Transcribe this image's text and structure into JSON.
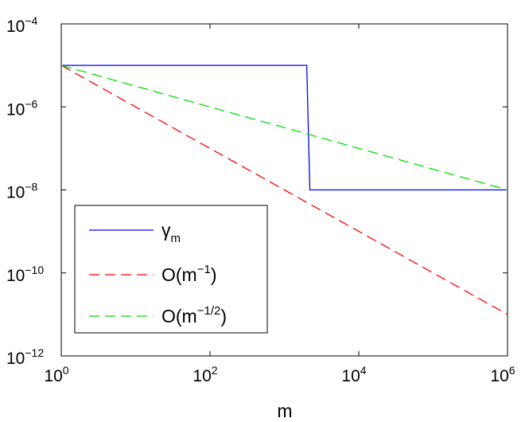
{
  "chart_data": {
    "type": "line",
    "xlabel": "m",
    "ylabel": "",
    "xscale": "log",
    "yscale": "log",
    "xlim": [
      1,
      1000000
    ],
    "ylim": [
      1e-12,
      0.0001
    ],
    "grid": false,
    "legend_position": "bottom-left",
    "x_ticks": [
      {
        "base": "10",
        "exp": "0",
        "value": 1
      },
      {
        "base": "10",
        "exp": "2",
        "value": 100
      },
      {
        "base": "10",
        "exp": "4",
        "value": 10000
      },
      {
        "base": "10",
        "exp": "6",
        "value": 1000000
      }
    ],
    "y_ticks": [
      {
        "base": "10",
        "exp": "−4",
        "value": 0.0001
      },
      {
        "base": "10",
        "exp": "−6",
        "value": 1e-06
      },
      {
        "base": "10",
        "exp": "−8",
        "value": 1e-08
      },
      {
        "base": "10",
        "exp": "−10",
        "value": 1e-10
      },
      {
        "base": "10",
        "exp": "−12",
        "value": 1e-12
      }
    ],
    "series": [
      {
        "name": "γ_m",
        "legend_main": "γ",
        "legend_sub": "m",
        "legend_sup": "",
        "legend_close": "",
        "color": "#0000ff",
        "dash": "solid",
        "x": [
          1,
          2000,
          2200,
          1000000
        ],
        "y": [
          1e-05,
          1e-05,
          1e-08,
          1e-08
        ]
      },
      {
        "name": "O(m^-1)",
        "legend_main": "O(m",
        "legend_sub": "",
        "legend_sup": "−1",
        "legend_close": ")",
        "color": "#ff0000",
        "dash": "dashed",
        "x": [
          1,
          10,
          100,
          1000,
          10000,
          100000,
          1000000
        ],
        "y": [
          1e-05,
          1e-06,
          1e-07,
          1e-08,
          1e-09,
          1e-10,
          1e-11
        ]
      },
      {
        "name": "O(m^-1/2)",
        "legend_main": "O(m",
        "legend_sub": "",
        "legend_sup": "−1/2",
        "legend_close": ")",
        "color": "#00dd00",
        "dash": "dashed",
        "x": [
          1,
          10,
          100,
          1000,
          10000,
          100000,
          1000000
        ],
        "y": [
          1e-05,
          3.16e-06,
          1e-06,
          3.16e-07,
          1e-07,
          3.16e-08,
          1e-08
        ]
      }
    ]
  }
}
